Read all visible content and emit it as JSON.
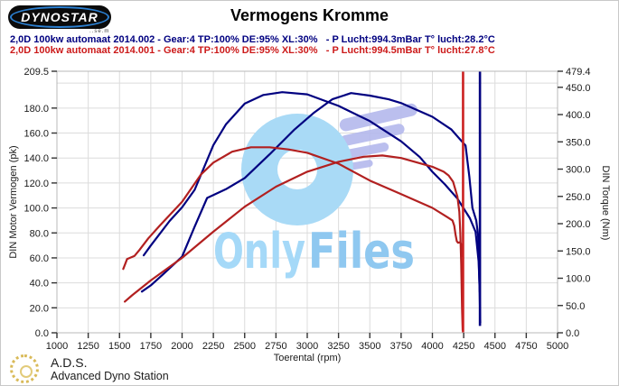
{
  "header": {
    "logo": {
      "text": "DYNOSTAR",
      "subtext": "..se.m"
    },
    "title": "Vermogens Kromme",
    "legend": [
      {
        "label": "2,0D 100kw automaat 2014.002 - Gear:4 TP:100% DE:95% XL:30%   - P Lucht:994.3mBar T° lucht:28.2°C",
        "color": "#000080"
      },
      {
        "label": "2,0D 100kw automaat 2014.001 - Gear:4 TP:100% DE:95% XL:30%   - P Lucht:994.5mBar T° lucht:27.8°C",
        "color": "#cc1a1a"
      }
    ]
  },
  "watermark": {
    "text_part1": "Only",
    "text_part2": "Files",
    "text_color1": "#a5d9f8",
    "text_color2": "#8fc8f0",
    "donut_color": "#a9daf6",
    "wing_color": "#b4b8ec"
  },
  "footer": {
    "brand": "A.D.S.",
    "brand_sub": "Advanced Dyno Station"
  },
  "chart_data": {
    "type": "line",
    "title": "Vermogens Kromme",
    "xlabel": "Toerental (rpm)",
    "ylabel_left": "DIN Motor Vermogen (pk)",
    "ylabel_right": "DIN Torque (Nm)",
    "grid": true,
    "legend_position": "top",
    "x_range": [
      1000,
      5000
    ],
    "x_ticks": [
      1000,
      1250,
      1500,
      1750,
      2000,
      2250,
      2500,
      2750,
      3000,
      3250,
      3500,
      3750,
      4000,
      4250,
      4500,
      4750,
      5000
    ],
    "left_range": [
      0,
      209.5
    ],
    "left_ticks": [
      "209.5",
      "180.0",
      "160.0",
      "140.0",
      "120.0",
      "100.0",
      "80.0",
      "60.0",
      "40.0",
      "20.0",
      "0.0"
    ],
    "left_grid": [
      20,
      40,
      60,
      80,
      100,
      120,
      140,
      160,
      180,
      200
    ],
    "right_range": [
      0,
      479.4
    ],
    "right_ticks": [
      "479.4",
      "450.0",
      "400.0",
      "350.0",
      "300.0",
      "250.0",
      "200.0",
      "150.0",
      "100.0",
      "50.0",
      "0.0"
    ],
    "series": [
      {
        "run": "2,0D 100kw automaat 2014.002",
        "quantity": "vermogen",
        "unit": "pk",
        "axis": "left",
        "color": "#000080",
        "points": [
          [
            1679,
            33
          ],
          [
            1750,
            38
          ],
          [
            1850,
            47
          ],
          [
            2000,
            61
          ],
          [
            2100,
            85
          ],
          [
            2200,
            108
          ],
          [
            2350,
            115
          ],
          [
            2500,
            124
          ],
          [
            2700,
            143
          ],
          [
            2900,
            163
          ],
          [
            3050,
            176
          ],
          [
            3200,
            187
          ],
          [
            3350,
            192
          ],
          [
            3500,
            190
          ],
          [
            3650,
            187
          ],
          [
            3750,
            184
          ],
          [
            4000,
            173
          ],
          [
            4150,
            163
          ],
          [
            4220,
            155
          ],
          [
            4265,
            150
          ],
          [
            4295,
            125
          ],
          [
            4320,
            100
          ],
          [
            4350,
            90
          ],
          [
            4365,
            78
          ],
          [
            4377,
            35
          ],
          [
            4383,
            8
          ]
        ]
      },
      {
        "run": "2,0D 100kw automaat 2014.002",
        "quantity": "koppel",
        "unit": "Nm",
        "axis": "right",
        "color": "#000080",
        "points": [
          [
            1693,
            142
          ],
          [
            1750,
            160
          ],
          [
            1900,
            205
          ],
          [
            2000,
            230
          ],
          [
            2100,
            262
          ],
          [
            2250,
            344
          ],
          [
            2350,
            382
          ],
          [
            2500,
            420
          ],
          [
            2650,
            436
          ],
          [
            2800,
            441
          ],
          [
            3000,
            437
          ],
          [
            3250,
            416
          ],
          [
            3500,
            388
          ],
          [
            3750,
            351
          ],
          [
            3900,
            322
          ],
          [
            4000,
            295
          ],
          [
            4100,
            272
          ],
          [
            4200,
            246
          ],
          [
            4300,
            210
          ],
          [
            4345,
            185
          ],
          [
            4370,
            130
          ],
          [
            4378,
            75
          ]
        ]
      },
      {
        "run": "2,0D 100kw automaat 2014.001",
        "quantity": "vermogen",
        "unit": "pk",
        "axis": "left",
        "color": "#b22020",
        "points": [
          [
            1542,
            25
          ],
          [
            1600,
            30
          ],
          [
            1750,
            42
          ],
          [
            2000,
            60
          ],
          [
            2250,
            81
          ],
          [
            2500,
            101
          ],
          [
            2750,
            117
          ],
          [
            3000,
            129
          ],
          [
            3250,
            137
          ],
          [
            3450,
            141
          ],
          [
            3600,
            142
          ],
          [
            3750,
            140
          ],
          [
            4000,
            133
          ],
          [
            4090,
            129
          ],
          [
            4130,
            126
          ],
          [
            4165,
            121
          ],
          [
            4200,
            109
          ],
          [
            4215,
            97
          ],
          [
            4223,
            80
          ],
          [
            4230,
            55
          ],
          [
            4237,
            20
          ],
          [
            4242,
            2
          ]
        ]
      },
      {
        "run": "2,0D 100kw automaat 2014.001",
        "quantity": "koppel",
        "unit": "Nm",
        "axis": "right",
        "color": "#b22020",
        "points": [
          [
            1530,
            117
          ],
          [
            1545,
            126
          ],
          [
            1560,
            135
          ],
          [
            1620,
            141
          ],
          [
            1660,
            152
          ],
          [
            1730,
            173
          ],
          [
            1820,
            196
          ],
          [
            2000,
            240
          ],
          [
            2150,
            290
          ],
          [
            2250,
            312
          ],
          [
            2400,
            332
          ],
          [
            2550,
            340
          ],
          [
            2700,
            340
          ],
          [
            2850,
            336
          ],
          [
            3000,
            330
          ],
          [
            3250,
            310
          ],
          [
            3500,
            279
          ],
          [
            3750,
            254
          ],
          [
            4000,
            229
          ],
          [
            4120,
            212
          ],
          [
            4160,
            206
          ],
          [
            4175,
            196
          ],
          [
            4185,
            180
          ],
          [
            4195,
            168
          ],
          [
            4205,
            165
          ],
          [
            4220,
            166
          ],
          [
            4232,
            162
          ],
          [
            4242,
            140
          ]
        ]
      }
    ],
    "end_spikes": [
      {
        "run": "2,0D 100kw automaat 2014.001",
        "rpm": 4245,
        "color": "#cc2222",
        "from_pk": 0,
        "to_pk": 209.5
      },
      {
        "run": "2,0D 100kw automaat 2014.002",
        "rpm": 4380,
        "color": "#000080",
        "from_pk": 5.5,
        "to_pk": 209.5
      }
    ]
  }
}
